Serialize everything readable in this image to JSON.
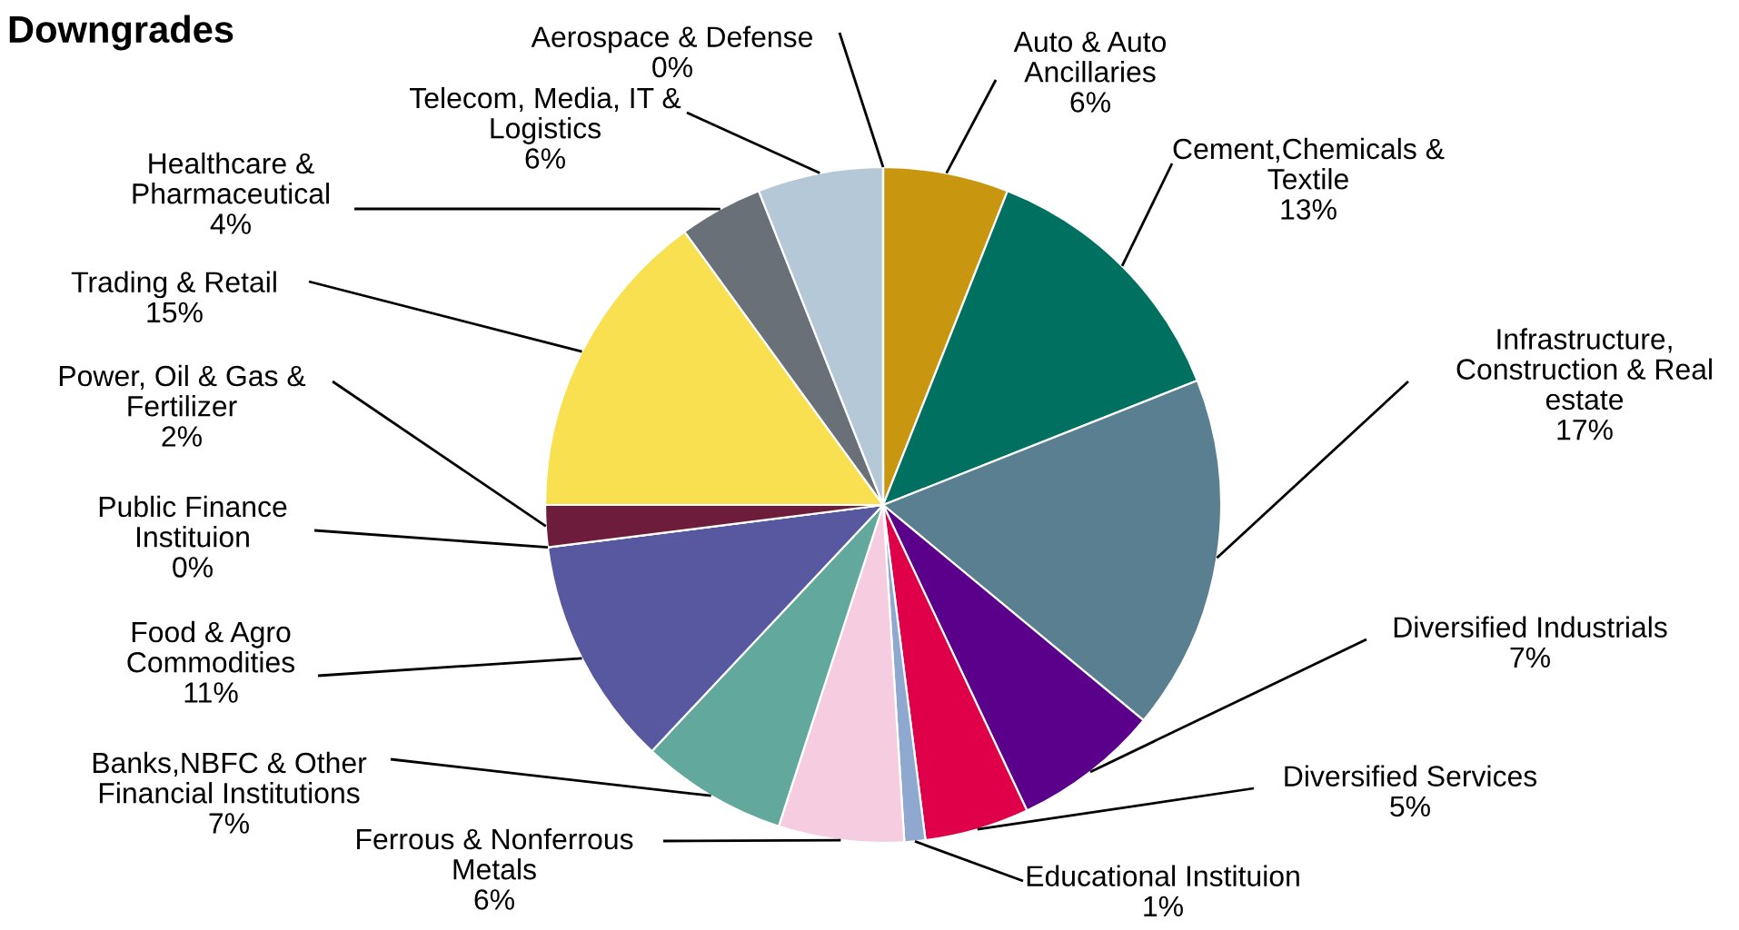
{
  "chart_data": {
    "type": "pie",
    "title": "Downgrades",
    "categories": [
      "Auto & Auto\nAncillaries",
      "Cement,Chemicals &\nTextile",
      "Infrastructure,\nConstruction & Real\nestate",
      "Diversified Industrials",
      "Diversified Services",
      "Educational Instituion",
      "Ferrous & Nonferrous\nMetals",
      "Banks,NBFC & Other\nFinancial Institutions",
      "Food & Agro\nCommodities",
      "Public Finance\nInstituion",
      "Power, Oil & Gas &\nFertilizer",
      "Trading & Retail",
      "Healthcare &\nPharmaceutical",
      "Telecom, Media, IT &\nLogistics",
      "Aerospace & Defense"
    ],
    "values": [
      6,
      13,
      17,
      7,
      5,
      1,
      6,
      7,
      11,
      0,
      2,
      15,
      4,
      6,
      0
    ],
    "value_labels": [
      "6%",
      "13%",
      "17%",
      "7%",
      "5%",
      "1%",
      "6%",
      "7%",
      "11%",
      "0%",
      "2%",
      "15%",
      "4%",
      "6%",
      "0%"
    ],
    "colors": [
      "#c8960f",
      "#007060",
      "#5a7f91",
      "#5a008a",
      "#e0004a",
      "#8fa8d0",
      "#f5cce0",
      "#62a89d",
      "#5858a0",
      "#a03050",
      "#6e1c3c",
      "#f8e050",
      "#6a7078",
      "#b4c8d8",
      "#8090a0"
    ],
    "legend": false
  }
}
